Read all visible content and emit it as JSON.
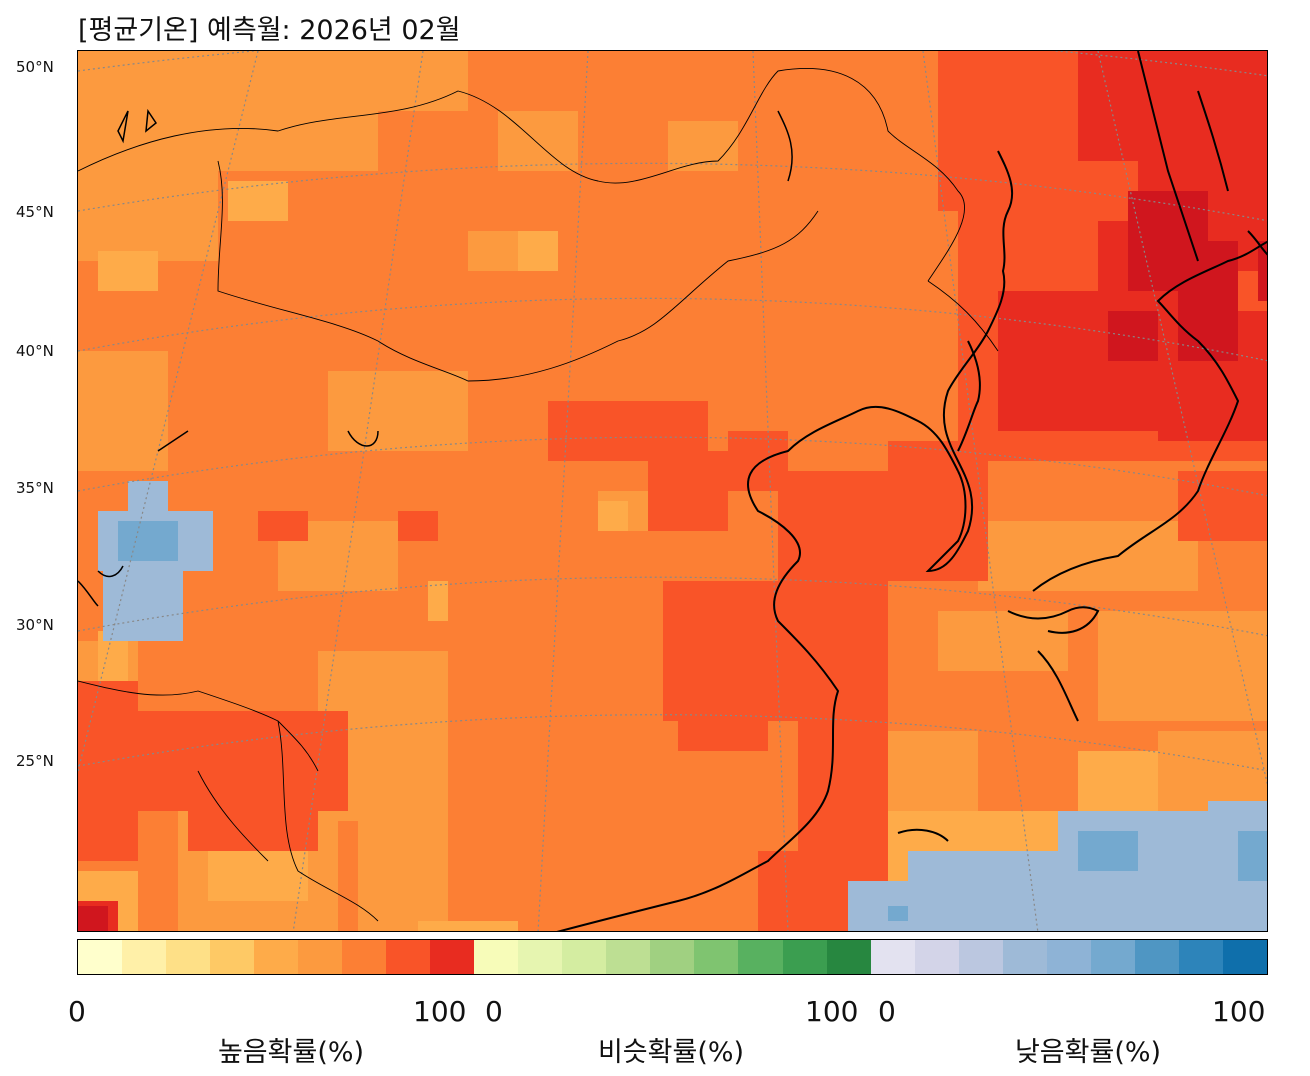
{
  "title": "[평균기온] 예측월: 2026년 02월",
  "lat_labels": [
    "50°N",
    "45°N",
    "40°N",
    "35°N",
    "30°N",
    "25°N"
  ],
  "legend": {
    "segments": [
      {
        "name": "높음확률(%)",
        "min_label": "0",
        "max_label": "100",
        "colors": [
          "#ffffcc",
          "#fff0a8",
          "#fee087",
          "#fec965",
          "#feab49",
          "#fc9a3f",
          "#fc7f34",
          "#f95428",
          "#e82c20"
        ]
      },
      {
        "name": "비슷확률(%)",
        "min_label": "0",
        "max_label": "100",
        "colors": [
          "#f7fcb9",
          "#e6f5b0",
          "#d4eda1",
          "#bddf93",
          "#a0d081",
          "#7fc470",
          "#58b160",
          "#3b9e50",
          "#278740"
        ]
      },
      {
        "name": "낮음확률(%)",
        "min_label": "0",
        "max_label": "100",
        "colors": [
          "#e3e2f0",
          "#d3d4e8",
          "#bbc7e0",
          "#9ebad7",
          "#8eb3d6",
          "#74a9cf",
          "#4f96c3",
          "#2d84ba",
          "#0f6fab"
        ]
      }
    ]
  },
  "map": {
    "base_color": "#fc7f34",
    "regions_note_colors": {
      "very_high": "#d0161e",
      "high": "#e82c20",
      "mid_high": "#f95428",
      "mid": "#fc7f34",
      "low_mid": "#fc9a3f",
      "low": "#feab49",
      "blue": "#9ebad7",
      "blue_dark": "#74a9cf"
    }
  }
}
